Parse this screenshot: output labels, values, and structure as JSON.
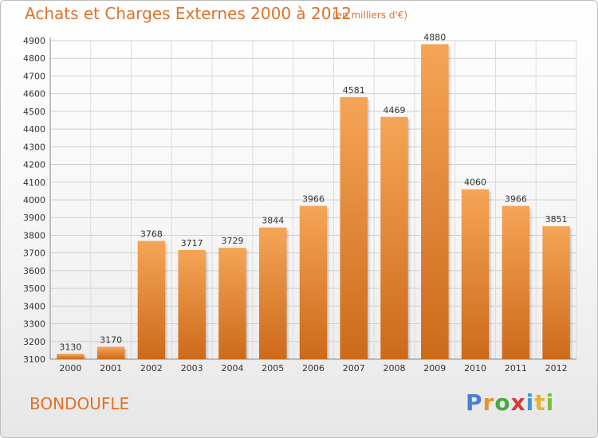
{
  "title": "Achats et Charges Externes 2000 à 2012",
  "subtitle": "(en milliers d'€)",
  "commune": "BONDOUFLE",
  "logo": {
    "letters": [
      "P",
      "r",
      "o",
      "x",
      "i",
      "t",
      "i"
    ],
    "colors": [
      "#4a7fd0",
      "#e8912b",
      "#4aa840",
      "#d83a3a",
      "#3d9ad8",
      "#e8b12b",
      "#7bbf3a"
    ]
  },
  "colors": {
    "bar_top": "#f5a556",
    "bar_bottom": "#cc6a1a",
    "text_accent": "#e0712a"
  },
  "chart_data": {
    "type": "bar",
    "categories": [
      "2000",
      "2001",
      "2002",
      "2003",
      "2004",
      "2005",
      "2006",
      "2007",
      "2008",
      "2009",
      "2010",
      "2011",
      "2012"
    ],
    "values": [
      3130,
      3170,
      3768,
      3717,
      3729,
      3844,
      3966,
      4581,
      4469,
      4880,
      4060,
      3966,
      3851
    ],
    "ylim": [
      3100,
      4900
    ],
    "yticks": [
      3100,
      3200,
      3300,
      3400,
      3500,
      3600,
      3700,
      3800,
      3900,
      4000,
      4100,
      4200,
      4300,
      4400,
      4500,
      4600,
      4700,
      4800,
      4900
    ],
    "grid": true
  }
}
